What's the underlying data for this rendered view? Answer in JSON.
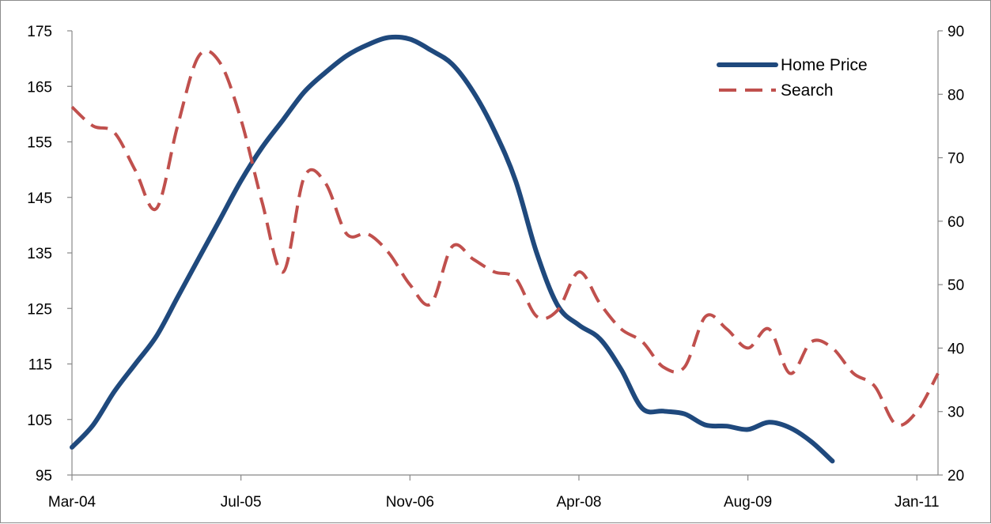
{
  "chart_data": {
    "type": "line",
    "title": "",
    "xlabel": "",
    "ylabel": "",
    "y2label": "",
    "x_tick_labels": [
      "Mar-04",
      "Jul-05",
      "Nov-06",
      "Apr-08",
      "Aug-09",
      "Jan-11"
    ],
    "x_tick_months": [
      0,
      16,
      32,
      48,
      64,
      80
    ],
    "x_range_months": [
      0,
      82
    ],
    "ylim": [
      95,
      175
    ],
    "yticks": [
      95,
      105,
      115,
      125,
      135,
      145,
      155,
      165,
      175
    ],
    "y2lim": [
      20,
      90
    ],
    "y2ticks": [
      20,
      30,
      40,
      50,
      60,
      70,
      80,
      90
    ],
    "grid": false,
    "legend": {
      "position": "top-right"
    },
    "series": [
      {
        "name": "Home Price",
        "axis": "left",
        "color": "#1f497d",
        "style": "solid",
        "x": [
          0,
          2,
          4,
          6,
          8,
          10,
          12,
          14,
          16,
          18,
          20,
          22,
          24,
          26,
          28,
          30,
          32,
          34,
          36,
          38,
          40,
          42,
          44,
          46,
          48,
          50,
          52,
          54,
          56,
          58,
          60,
          62,
          64,
          66,
          68,
          70,
          72,
          74,
          76,
          78,
          80,
          82
        ],
        "y": [
          100,
          104,
          110,
          115,
          120,
          127,
          134,
          141,
          148,
          154,
          159,
          164,
          167.5,
          170.5,
          172.5,
          173.8,
          173.5,
          171.5,
          169,
          164,
          157,
          148,
          135,
          125.5,
          122,
          119.5,
          114,
          107,
          106.5,
          106,
          104,
          103.8,
          103.2,
          104.5,
          103.5,
          101,
          97.5,
          null,
          null,
          null,
          null,
          null
        ]
      },
      {
        "name": "Search",
        "axis": "right",
        "color": "#c0504d",
        "style": "dashed",
        "x": [
          0,
          2,
          4,
          6,
          8,
          10,
          12,
          14,
          16,
          18,
          20,
          22,
          24,
          26,
          28,
          30,
          32,
          34,
          36,
          38,
          40,
          42,
          44,
          46,
          48,
          50,
          52,
          54,
          56,
          58,
          60,
          62,
          64,
          66,
          68,
          70,
          72,
          74,
          76,
          78,
          80,
          82
        ],
        "y": [
          78,
          75,
          74,
          68,
          62,
          75,
          86,
          85,
          76,
          63,
          52,
          67,
          66,
          58,
          58,
          55,
          50,
          47,
          56,
          54,
          52,
          51,
          45,
          46,
          52,
          47,
          43,
          41,
          37,
          37,
          45,
          43,
          40,
          43,
          36,
          41,
          40,
          36,
          34,
          28,
          30,
          36
        ]
      }
    ]
  }
}
